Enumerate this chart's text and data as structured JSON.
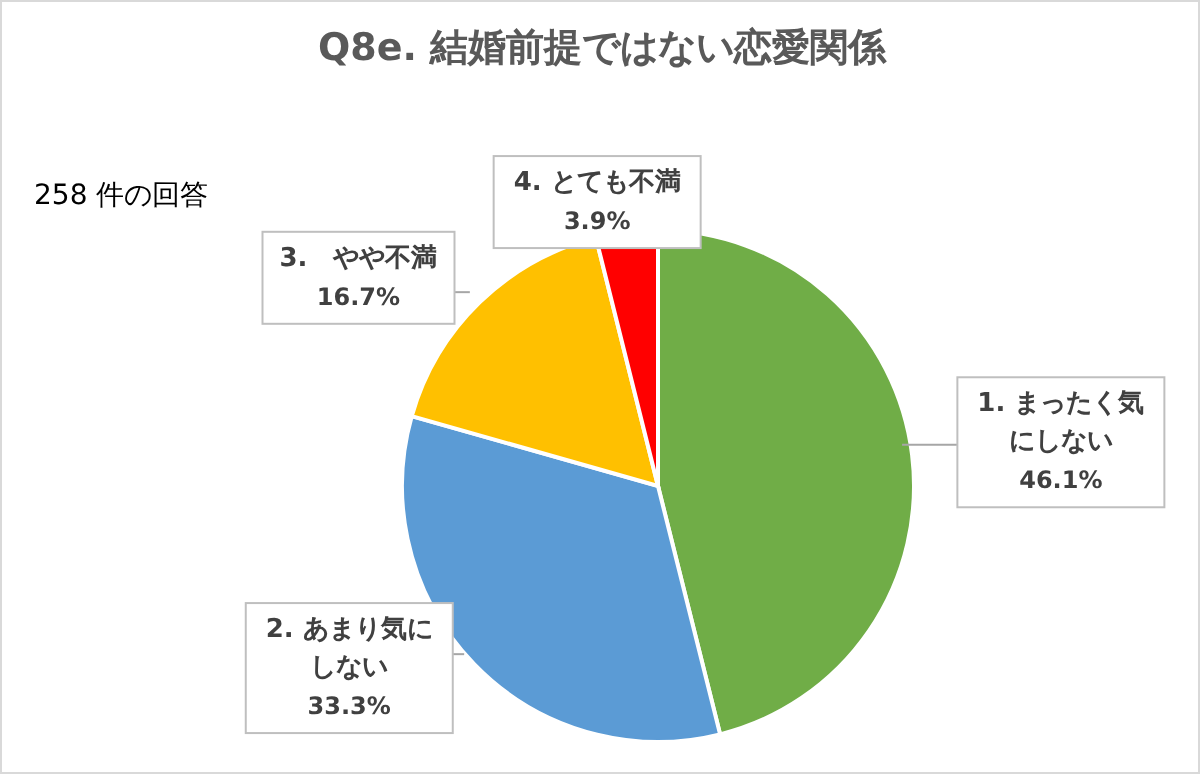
{
  "chart_data": {
    "type": "pie",
    "title": "Q8e. 結婚前提ではない恋愛関係",
    "annotations": [
      "258 件の回答"
    ],
    "categories": [
      "1. まったく気にしない",
      "2. あまり気にしない",
      "3.　やや不満",
      "4. とても不満"
    ],
    "values": [
      46.1,
      33.3,
      16.7,
      3.9
    ],
    "colors": [
      "#70ad47",
      "#5b9bd5",
      "#ffc000",
      "#ff0000"
    ],
    "value_labels": [
      "46.1%",
      "33.3%",
      "16.7%",
      "3.9%"
    ]
  }
}
